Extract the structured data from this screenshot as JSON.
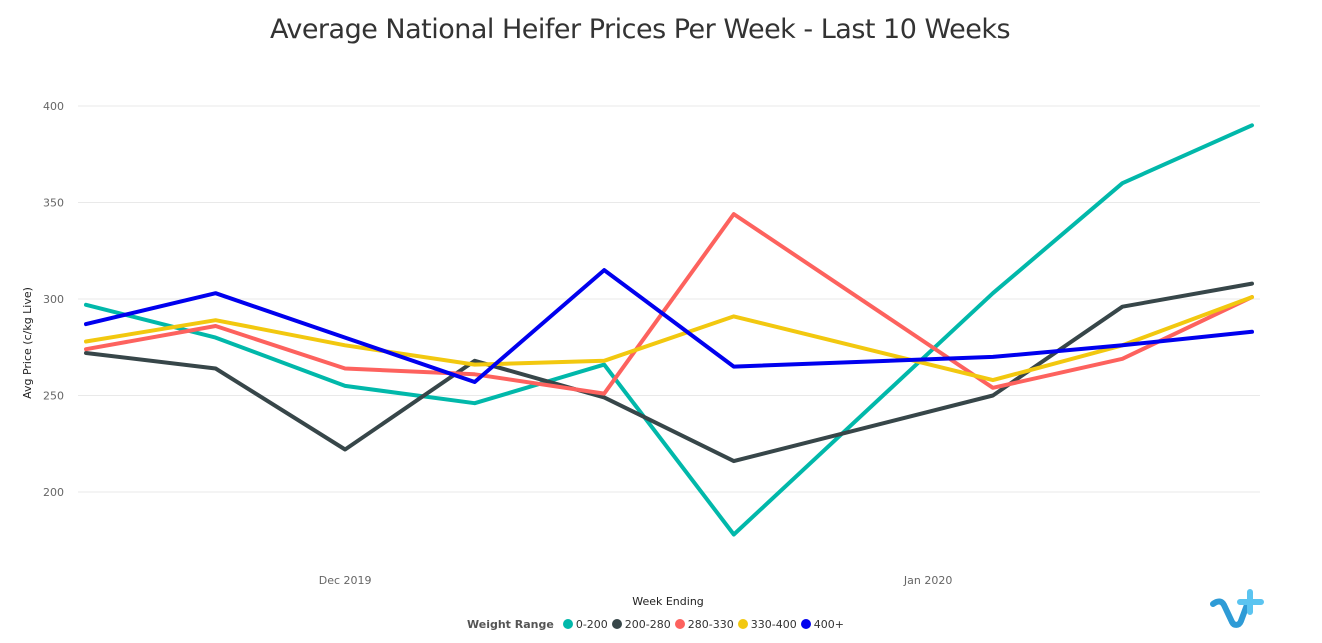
{
  "chart_data": {
    "type": "line",
    "title": "Average National Heifer Prices Per Week - Last 10 Weeks",
    "xlabel": "Week Ending",
    "ylabel": "Avg Price (c/kg Live)",
    "ylim": [
      175,
      400
    ],
    "yticks": [
      200,
      250,
      300,
      350,
      400
    ],
    "x_tick_labels": [
      {
        "label": "Dec 2019",
        "at": 2
      },
      {
        "label": "Jan 2020",
        "at": 6.5
      }
    ],
    "x": [
      0,
      1,
      2,
      3,
      4,
      5,
      7,
      8,
      9
    ],
    "grid": true,
    "legend_position": "bottom",
    "legend_title": "Weight Range",
    "series": [
      {
        "name": "0-200",
        "color": "#01B8AA",
        "values": [
          297,
          280,
          255,
          246,
          266,
          178,
          303,
          360,
          390
        ]
      },
      {
        "name": "200-280",
        "color": "#374649",
        "values": [
          272,
          264,
          222,
          268,
          249,
          216,
          250,
          296,
          308
        ]
      },
      {
        "name": "280-330",
        "color": "#FD625E",
        "values": [
          274,
          286,
          264,
          261,
          251,
          344,
          254,
          269,
          301
        ]
      },
      {
        "name": "330-400",
        "color": "#F2C80F",
        "values": [
          278,
          289,
          276,
          266,
          268,
          291,
          258,
          276,
          301
        ]
      },
      {
        "name": "400+",
        "color": "#0000EE",
        "values": [
          287,
          303,
          280,
          257,
          315,
          265,
          270,
          276,
          283
        ]
      }
    ]
  },
  "logo": {
    "name": "tick-cross-logo-icon",
    "color": "#2E9BD6"
  }
}
